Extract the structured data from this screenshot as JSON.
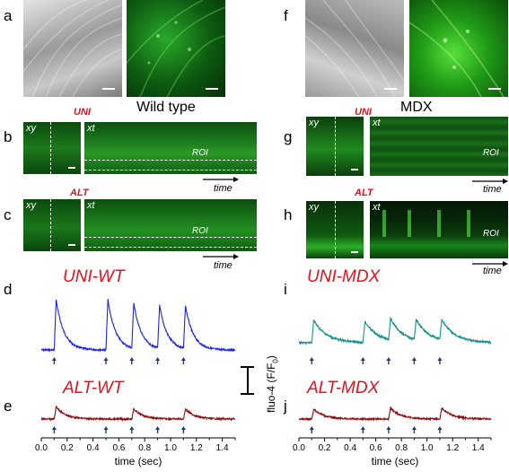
{
  "panels": {
    "a": "a",
    "b": "b",
    "c": "c",
    "d": "d",
    "e": "e",
    "f": "f",
    "g": "g",
    "h": "h",
    "i": "i",
    "j": "j"
  },
  "titles": {
    "wild_type": "Wild type",
    "mdx": "MDX"
  },
  "protocols": {
    "uni": "UNI",
    "alt": "ALT"
  },
  "image_labels": {
    "xy": "xy",
    "xt": "xt",
    "roi": "ROI",
    "time": "time"
  },
  "trace_labels": {
    "uni_wt": "UNI-WT",
    "alt_wt": "ALT-WT",
    "uni_mdx": "UNI-MDX",
    "alt_mdx": "ALT-MDX"
  },
  "y_axis_label": "fluo-4 (F/F",
  "y_axis_sub": "0",
  "y_axis_close": ")",
  "colors": {
    "uni_wt": "#1a22e6",
    "alt_wt": "#8b0f14",
    "uni_mdx": "#17908c",
    "alt_mdx": "#8b0f14",
    "stimulus_arrow": "#1f3a78",
    "label_red": "#e8101a"
  },
  "chart_data": [
    {
      "type": "line",
      "id": "uni-wt",
      "title": "UNI-WT",
      "x_ticks": [
        "0.0",
        "0.1",
        "0.2",
        "0.3",
        "0.4",
        "0.5",
        "0.6",
        "0.7",
        "0.8",
        "0.9",
        "1.0",
        "1.1",
        "1.2",
        "1.3",
        "1.4",
        "1.5"
      ],
      "xlim": [
        0.0,
        1.5
      ],
      "stimuli": [
        0.1,
        0.5,
        0.7,
        0.9,
        1.1
      ],
      "peaks": [
        1.0,
        1.0,
        0.9,
        0.85,
        0.85
      ],
      "baseline": 0.0,
      "tau": 0.06
    },
    {
      "type": "line",
      "id": "alt-wt",
      "title": "ALT-WT",
      "xlabel": "time (sec)",
      "x_ticks": [
        "0.0",
        "0.1",
        "0.2",
        "0.3",
        "0.4",
        "0.5",
        "0.6",
        "0.7",
        "0.8",
        "0.9",
        "1.0",
        "1.1",
        "1.2",
        "1.3",
        "1.4",
        "1.5"
      ],
      "xlim": [
        0.0,
        1.5
      ],
      "stimuli": [
        0.1,
        0.5,
        0.7,
        0.9,
        1.1
      ],
      "peaks": [
        0.25,
        0.0,
        0.2,
        0.0,
        0.2
      ],
      "baseline": 0.0,
      "tau": 0.07
    },
    {
      "type": "line",
      "id": "uni-mdx",
      "title": "UNI-MDX",
      "x_ticks": [
        "0.0",
        "0.1",
        "0.2",
        "0.3",
        "0.4",
        "0.5",
        "0.6",
        "0.7",
        "0.8",
        "0.9",
        "1.0",
        "1.1",
        "1.2",
        "1.3",
        "1.4",
        "1.5"
      ],
      "xlim": [
        0.0,
        1.5
      ],
      "stimuli": [
        0.1,
        0.5,
        0.7,
        0.9,
        1.1
      ],
      "peaks": [
        0.45,
        0.42,
        0.42,
        0.4,
        0.4
      ],
      "baseline": 0.0,
      "tau": 0.1
    },
    {
      "type": "line",
      "id": "alt-mdx",
      "title": "ALT-MDX",
      "xlabel": "time (sec)",
      "x_ticks": [
        "0.0",
        "0.1",
        "0.2",
        "0.3",
        "0.4",
        "0.5",
        "0.6",
        "0.7",
        "0.8",
        "0.9",
        "1.0",
        "1.1",
        "1.2",
        "1.3",
        "1.4",
        "1.5"
      ],
      "xlim": [
        0.0,
        1.5
      ],
      "stimuli": [
        0.1,
        0.5,
        0.7,
        0.9,
        1.1
      ],
      "peaks": [
        0.2,
        0.0,
        0.22,
        0.0,
        0.22
      ],
      "baseline": 0.0,
      "tau": 0.08
    }
  ]
}
